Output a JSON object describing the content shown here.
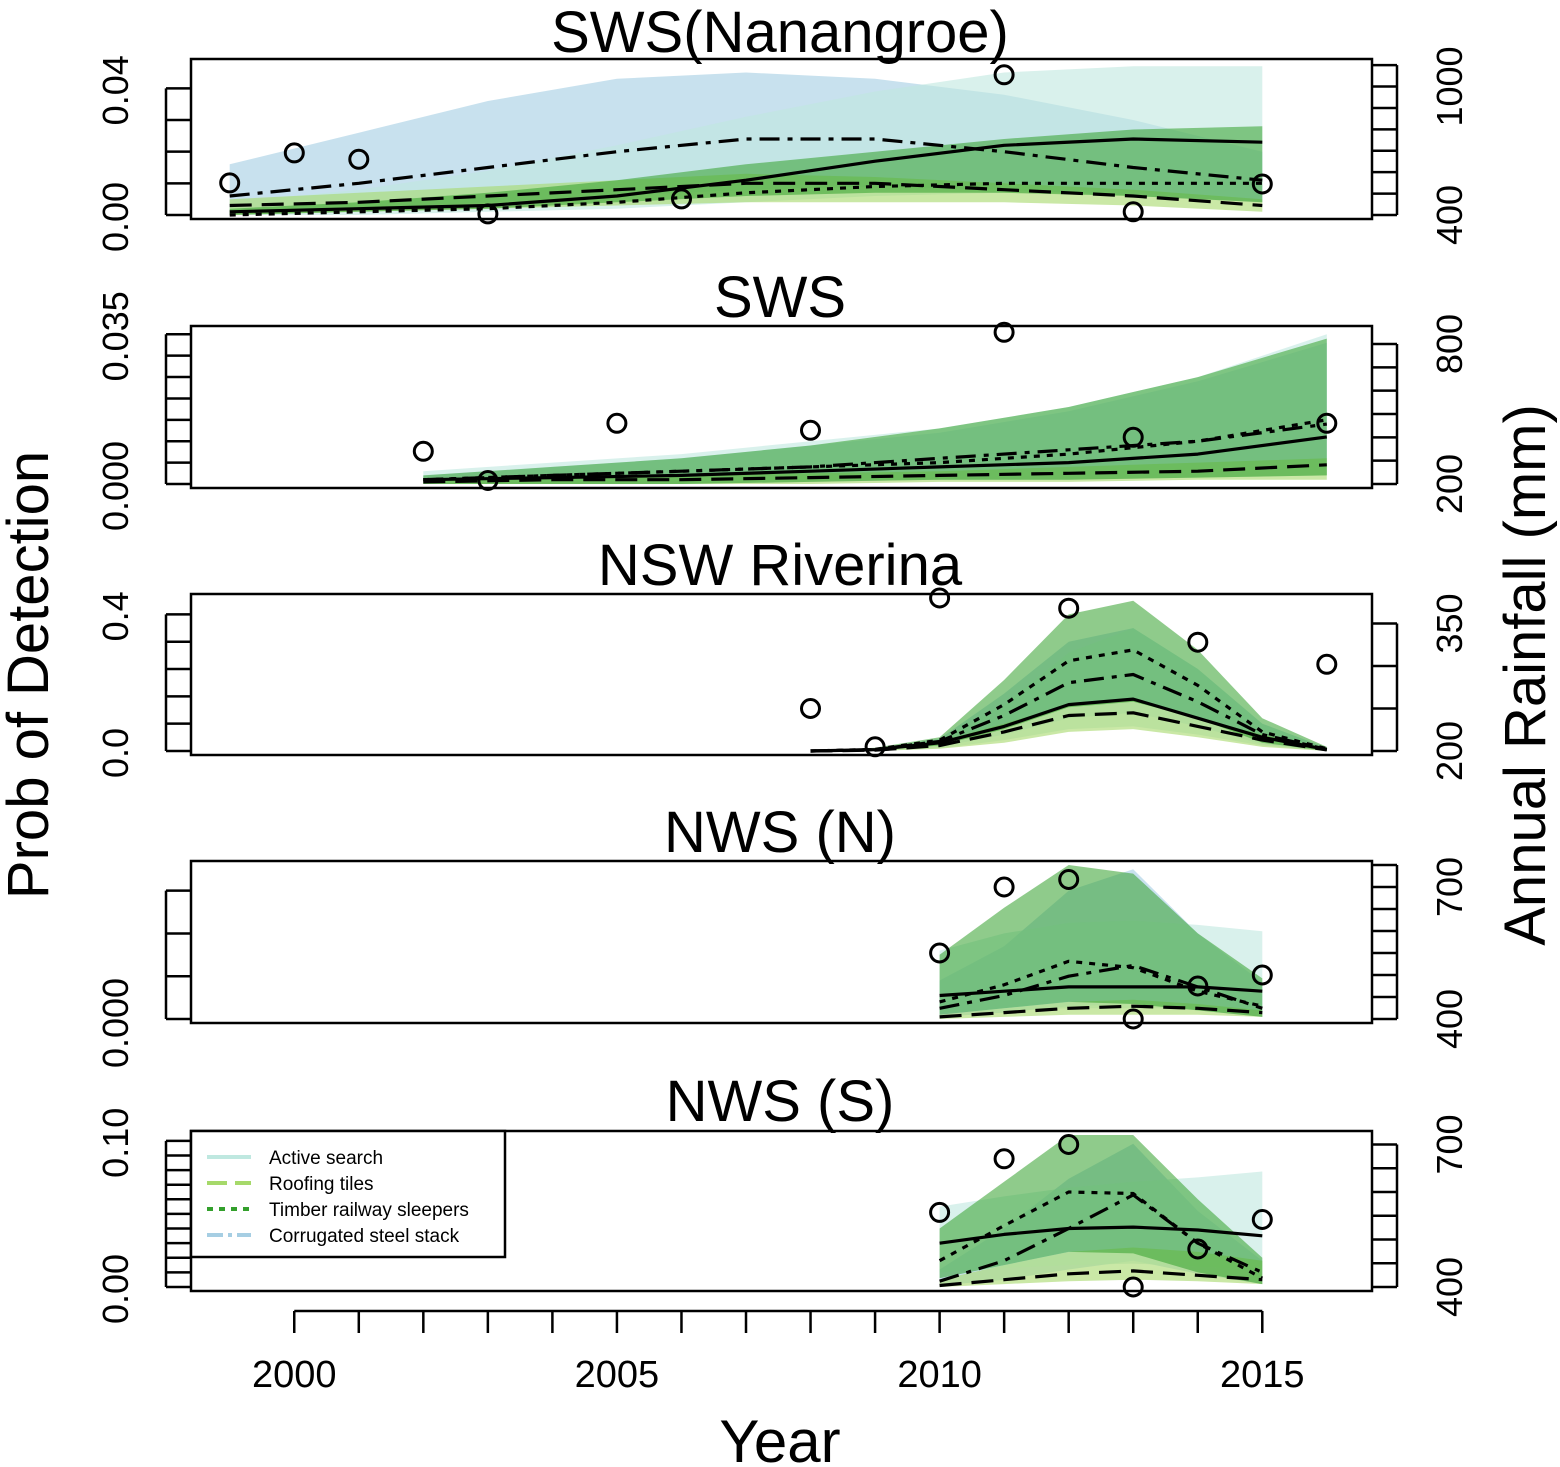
{
  "figure": {
    "xlabel": "Year",
    "ylabel_left": "Prob of Detection",
    "ylabel_right": "Annual Rainfall (mm)",
    "x_ticks": [
      2000,
      2005,
      2010,
      2015
    ],
    "xlim": [
      1998.4,
      2016.7
    ]
  },
  "legend": {
    "entries": [
      {
        "label": "Active search",
        "color": "#bfe8e0",
        "style": "solid"
      },
      {
        "label": "Roofing tiles",
        "color": "#a6d96a",
        "style": "longdash"
      },
      {
        "label": "Timber railway sleepers",
        "color": "#33a02c",
        "style": "dotted"
      },
      {
        "label": "Corrugated steel stack",
        "color": "#a6cee3",
        "style": "dotdash"
      }
    ]
  },
  "colors": {
    "active_search": "#bfe8e0",
    "roofing_tiles": "#a6d96a",
    "timber_railway_sleepers": "#33a02c",
    "corrugated_steel_stack": "#a6cee3",
    "line": "#000000"
  },
  "chart_data": [
    {
      "type": "line",
      "title": "SWS(Nanangroe)",
      "ylim": [
        0.0,
        0.048
      ],
      "left_ticks": [
        0.0,
        0.01,
        0.02,
        0.03,
        0.04
      ],
      "left_tick_labels": [
        "0.00",
        "0.04"
      ],
      "right_ylim": [
        400,
        1110
      ],
      "right_ticks": [
        400,
        500,
        600,
        700,
        800,
        900,
        1000,
        1100
      ],
      "right_tick_labels": [
        "400",
        "1000"
      ],
      "x": [
        1999,
        2001,
        2003,
        2005,
        2007,
        2009,
        2011,
        2013,
        2015
      ],
      "series": [
        {
          "name": "Active search",
          "style": "solid",
          "mean": [
            0.001,
            0.002,
            0.003,
            0.006,
            0.011,
            0.017,
            0.022,
            0.024,
            0.023
          ],
          "lower": [
            0.0,
            0.0,
            0.001,
            0.002,
            0.004,
            0.006,
            0.007,
            0.007,
            0.005
          ],
          "upper": [
            0.004,
            0.008,
            0.014,
            0.022,
            0.031,
            0.039,
            0.045,
            0.047,
            0.047
          ]
        },
        {
          "name": "Roofing tiles",
          "style": "longdash",
          "mean": [
            0.003,
            0.004,
            0.006,
            0.008,
            0.01,
            0.01,
            0.008,
            0.006,
            0.003
          ],
          "lower": [
            0.0,
            0.001,
            0.002,
            0.003,
            0.004,
            0.004,
            0.004,
            0.003,
            0.001
          ],
          "upper": [
            0.005,
            0.007,
            0.009,
            0.011,
            0.013,
            0.012,
            0.01,
            0.008,
            0.005
          ]
        },
        {
          "name": "Timber railway sleepers",
          "style": "dotted",
          "mean": [
            0.0,
            0.001,
            0.002,
            0.004,
            0.007,
            0.009,
            0.01,
            0.01,
            0.01
          ],
          "lower": [
            0.0,
            0.001,
            0.002,
            0.004,
            0.006,
            0.007,
            0.007,
            0.006,
            0.004
          ],
          "upper": [
            0.002,
            0.004,
            0.007,
            0.011,
            0.016,
            0.02,
            0.024,
            0.027,
            0.028
          ]
        },
        {
          "name": "Corrugated steel stack",
          "style": "dotdash",
          "mean": [
            0.006,
            0.01,
            0.015,
            0.02,
            0.024,
            0.024,
            0.02,
            0.015,
            0.011
          ],
          "lower": [
            0.001,
            0.002,
            0.004,
            0.006,
            0.008,
            0.009,
            0.008,
            0.006,
            0.004
          ],
          "upper": [
            0.016,
            0.026,
            0.036,
            0.043,
            0.045,
            0.043,
            0.038,
            0.03,
            0.02
          ]
        }
      ],
      "rainfall": {
        "x": [
          1999,
          2000,
          2001,
          2003,
          2006,
          2011,
          2013,
          2015
        ],
        "values": [
          550,
          690,
          660,
          405,
          475,
          1055,
          415,
          545
        ]
      }
    },
    {
      "type": "line",
      "title": "SWS",
      "ylim": [
        0.0,
        0.036
      ],
      "left_ticks": [
        0.0,
        0.005,
        0.01,
        0.015,
        0.02,
        0.025,
        0.03,
        0.035
      ],
      "left_tick_labels": [
        "0.000",
        "0.035"
      ],
      "right_ylim": [
        200,
        860
      ],
      "right_ticks": [
        200,
        300,
        400,
        500,
        600,
        700,
        800
      ],
      "right_tick_labels": [
        "200",
        "800"
      ],
      "x": [
        2002,
        2004,
        2006,
        2008,
        2010,
        2012,
        2014,
        2016
      ],
      "series": [
        {
          "name": "Active search",
          "style": "solid",
          "mean": [
            0.001,
            0.0015,
            0.002,
            0.003,
            0.004,
            0.005,
            0.007,
            0.011
          ],
          "lower": [
            0.0,
            0.0,
            0.0,
            0.0005,
            0.001,
            0.001,
            0.0015,
            0.002
          ],
          "upper": [
            0.003,
            0.005,
            0.007,
            0.01,
            0.013,
            0.018,
            0.025,
            0.035
          ]
        },
        {
          "name": "Roofing tiles",
          "style": "longdash",
          "mean": [
            0.0005,
            0.001,
            0.001,
            0.0015,
            0.002,
            0.0025,
            0.003,
            0.0045
          ],
          "lower": [
            0.0,
            0.0,
            0.0,
            0.0,
            0.0005,
            0.0005,
            0.001,
            0.001
          ],
          "upper": [
            0.001,
            0.0015,
            0.002,
            0.0025,
            0.003,
            0.004,
            0.005,
            0.006
          ]
        },
        {
          "name": "Timber railway sleepers",
          "style": "dotted",
          "mean": [
            0.001,
            0.002,
            0.003,
            0.004,
            0.005,
            0.007,
            0.01,
            0.015
          ],
          "lower": [
            0.0,
            0.0,
            0.0,
            0.0005,
            0.001,
            0.001,
            0.0015,
            0.002
          ],
          "upper": [
            0.002,
            0.004,
            0.006,
            0.009,
            0.013,
            0.018,
            0.025,
            0.034
          ]
        },
        {
          "name": "Corrugated steel stack",
          "style": "dotdash",
          "mean": [
            0.001,
            0.002,
            0.003,
            0.004,
            0.006,
            0.008,
            0.01,
            0.014
          ],
          "lower": [
            0.0,
            0.0,
            0.0,
            0.0005,
            0.001,
            0.001,
            0.0015,
            0.002
          ],
          "upper": [
            0.002,
            0.004,
            0.006,
            0.009,
            0.012,
            0.017,
            0.024,
            0.033
          ]
        }
      ],
      "rainfall": {
        "x": [
          2002,
          2003,
          2005,
          2008,
          2011,
          2013,
          2016
        ],
        "values": [
          340,
          215,
          460,
          430,
          850,
          400,
          460
        ]
      }
    },
    {
      "type": "line",
      "title": "NSW Riverina",
      "ylim": [
        0.0,
        0.56
      ],
      "left_ticks": [
        0.0,
        0.1,
        0.2,
        0.3,
        0.4,
        0.5
      ],
      "left_tick_labels": [
        "0.0",
        "0.4"
      ],
      "right_ylim": [
        200,
        380
      ],
      "right_ticks": [
        200,
        250,
        300,
        350
      ],
      "right_tick_labels": [
        "200",
        "350"
      ],
      "x": [
        2008,
        2009,
        2010,
        2011,
        2012,
        2013,
        2014,
        2015,
        2016
      ],
      "series": [
        {
          "name": "Active search",
          "style": "solid",
          "mean": [
            0.0,
            0.005,
            0.03,
            0.09,
            0.17,
            0.19,
            0.12,
            0.05,
            0.005
          ],
          "lower": [
            0.0,
            0.0,
            0.01,
            0.04,
            0.08,
            0.09,
            0.06,
            0.02,
            0.0
          ],
          "upper": [
            0.0,
            0.01,
            0.04,
            0.17,
            0.36,
            0.45,
            0.3,
            0.1,
            0.01
          ]
        },
        {
          "name": "Roofing tiles",
          "style": "longdash",
          "mean": [
            0.0,
            0.003,
            0.02,
            0.07,
            0.13,
            0.14,
            0.09,
            0.04,
            0.004
          ],
          "lower": [
            0.0,
            0.0,
            0.008,
            0.03,
            0.07,
            0.08,
            0.05,
            0.015,
            0.0
          ],
          "upper": [
            0.0,
            0.008,
            0.035,
            0.1,
            0.17,
            0.19,
            0.12,
            0.06,
            0.01
          ]
        },
        {
          "name": "Timber railway sleepers",
          "style": "dotted",
          "mean": [
            0.0,
            0.006,
            0.04,
            0.17,
            0.33,
            0.37,
            0.24,
            0.07,
            0.008
          ],
          "lower": [
            0.0,
            0.002,
            0.02,
            0.08,
            0.16,
            0.18,
            0.12,
            0.03,
            0.0
          ],
          "upper": [
            0.0,
            0.012,
            0.05,
            0.26,
            0.5,
            0.55,
            0.37,
            0.12,
            0.015
          ]
        },
        {
          "name": "Corrugated steel stack",
          "style": "dotdash",
          "mean": [
            0.0,
            0.005,
            0.035,
            0.13,
            0.25,
            0.28,
            0.18,
            0.06,
            0.006
          ],
          "lower": [
            0.0,
            0.001,
            0.015,
            0.06,
            0.12,
            0.14,
            0.09,
            0.025,
            0.0
          ],
          "upper": [
            0.0,
            0.01,
            0.045,
            0.21,
            0.4,
            0.45,
            0.3,
            0.1,
            0.012
          ]
        }
      ],
      "rainfall": {
        "x": [
          2008,
          2009,
          2010,
          2012,
          2014,
          2016
        ],
        "values": [
          250,
          205,
          380,
          368,
          328,
          302
        ]
      }
    },
    {
      "type": "line",
      "title": "NWS (N)",
      "ylim": [
        0.0,
        0.072
      ],
      "left_ticks": [
        0.0,
        0.02,
        0.04,
        0.06
      ],
      "left_tick_labels": [
        "0.000"
      ],
      "right_ylim": [
        400,
        750
      ],
      "right_ticks": [
        400,
        450,
        500,
        550,
        600,
        650,
        700,
        750
      ],
      "right_tick_labels": [
        "400",
        "700"
      ],
      "x": [
        2010,
        2011,
        2012,
        2013,
        2014,
        2015
      ],
      "series": [
        {
          "name": "Active search",
          "style": "solid",
          "mean": [
            0.011,
            0.013,
            0.015,
            0.015,
            0.015,
            0.013
          ],
          "lower": [
            0.003,
            0.004,
            0.005,
            0.005,
            0.005,
            0.004
          ],
          "upper": [
            0.032,
            0.04,
            0.045,
            0.046,
            0.044,
            0.041
          ]
        },
        {
          "name": "Roofing tiles",
          "style": "longdash",
          "mean": [
            0.001,
            0.003,
            0.005,
            0.006,
            0.005,
            0.003
          ],
          "lower": [
            0.0,
            0.001,
            0.002,
            0.002,
            0.002,
            0.001
          ],
          "upper": [
            0.002,
            0.005,
            0.008,
            0.009,
            0.007,
            0.004
          ]
        },
        {
          "name": "Timber railway sleepers",
          "style": "dotted",
          "mean": [
            0.008,
            0.016,
            0.027,
            0.024,
            0.013,
            0.006
          ],
          "lower": [
            0.002,
            0.005,
            0.008,
            0.007,
            0.004,
            0.001
          ],
          "upper": [
            0.03,
            0.052,
            0.072,
            0.068,
            0.04,
            0.019
          ]
        },
        {
          "name": "Corrugated steel stack",
          "style": "dotdash",
          "mean": [
            0.005,
            0.011,
            0.02,
            0.025,
            0.015,
            0.005
          ],
          "lower": [
            0.001,
            0.003,
            0.006,
            0.007,
            0.004,
            0.001
          ],
          "upper": [
            0.018,
            0.034,
            0.06,
            0.07,
            0.04,
            0.017
          ]
        }
      ],
      "rainfall": {
        "x": [
          2010,
          2011,
          2012,
          2013,
          2014,
          2015
        ],
        "values": [
          550,
          700,
          717,
          400,
          475,
          500
        ]
      }
    },
    {
      "type": "line",
      "title": "NWS (S)",
      "ylim": [
        0.0,
        0.104
      ],
      "left_ticks": [
        0.0,
        0.01,
        0.02,
        0.03,
        0.04,
        0.05,
        0.06,
        0.07,
        0.08,
        0.09,
        0.1
      ],
      "left_tick_labels": [
        "0.00",
        "0.10"
      ],
      "right_ylim": [
        400,
        720
      ],
      "right_ticks": [
        400,
        450,
        500,
        550,
        600,
        650,
        700
      ],
      "right_tick_labels": [
        "400",
        "700"
      ],
      "x": [
        2010,
        2011,
        2012,
        2013,
        2014,
        2015
      ],
      "series": [
        {
          "name": "Active search",
          "style": "solid",
          "mean": [
            0.03,
            0.036,
            0.04,
            0.041,
            0.039,
            0.035
          ],
          "lower": [
            0.01,
            0.013,
            0.015,
            0.016,
            0.014,
            0.012
          ],
          "upper": [
            0.055,
            0.062,
            0.068,
            0.072,
            0.075,
            0.079
          ]
        },
        {
          "name": "Roofing tiles",
          "style": "longdash",
          "mean": [
            0.001,
            0.005,
            0.009,
            0.011,
            0.008,
            0.005
          ],
          "lower": [
            0.0,
            0.002,
            0.004,
            0.005,
            0.004,
            0.002
          ],
          "upper": [
            0.005,
            0.015,
            0.024,
            0.027,
            0.024,
            0.018
          ]
        },
        {
          "name": "Timber railway sleepers",
          "style": "dotted",
          "mean": [
            0.018,
            0.042,
            0.065,
            0.064,
            0.03,
            0.006
          ],
          "lower": [
            0.006,
            0.015,
            0.024,
            0.023,
            0.01,
            0.002
          ],
          "upper": [
            0.04,
            0.072,
            0.104,
            0.104,
            0.06,
            0.02
          ]
        },
        {
          "name": "Corrugated steel stack",
          "style": "dotdash",
          "mean": [
            0.004,
            0.018,
            0.04,
            0.063,
            0.03,
            0.01
          ],
          "lower": [
            0.001,
            0.005,
            0.012,
            0.018,
            0.009,
            0.002
          ],
          "upper": [
            0.012,
            0.04,
            0.074,
            0.098,
            0.052,
            0.018
          ]
        }
      ],
      "rainfall": {
        "x": [
          2010,
          2011,
          2012,
          2013,
          2014,
          2015
        ],
        "values": [
          557,
          670,
          700,
          400,
          480,
          542
        ]
      }
    }
  ]
}
